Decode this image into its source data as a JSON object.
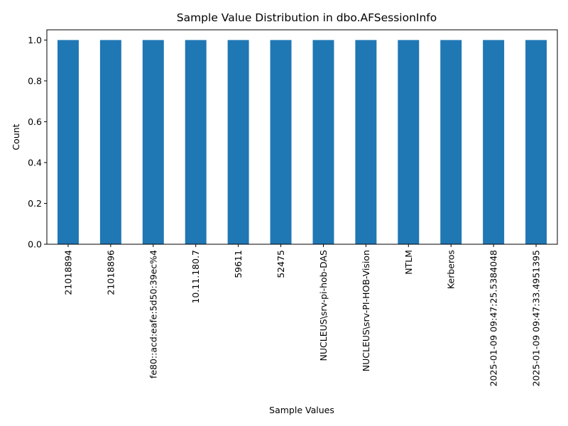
{
  "chart_data": {
    "type": "bar",
    "title": "Sample Value Distribution in dbo.AFSessionInfo",
    "xlabel": "Sample Values",
    "ylabel": "Count",
    "categories": [
      "21018894",
      "21018896",
      "fe80::acd:eafe:5d50:39ec%4",
      "10.11.180.7",
      "59611",
      "52475",
      "NUCLEUS\\srv-pi-hob-DAS",
      "NUCLEUS\\srv-PI-HOB-Vision",
      "NTLM",
      "Kerberos",
      "2025-01-09 09:47:25.5384048",
      "2025-01-09 09:47:33.4951395"
    ],
    "values": [
      1,
      1,
      1,
      1,
      1,
      1,
      1,
      1,
      1,
      1,
      1,
      1
    ],
    "ylim": [
      0,
      1.05
    ],
    "yticks": [
      "0.0",
      "0.2",
      "0.4",
      "0.6",
      "0.8",
      "1.0"
    ],
    "grid": false,
    "legend": "none",
    "bar_color": "#1f77b4"
  }
}
